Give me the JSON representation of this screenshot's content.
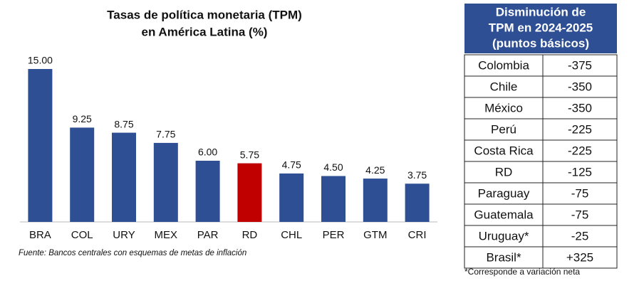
{
  "chart_data": {
    "type": "bar",
    "title_lines": [
      "Tasas de política monetaria (TPM)",
      "en América Latina (%)"
    ],
    "categories": [
      "BRA",
      "COL",
      "URY",
      "MEX",
      "PAR",
      "RD",
      "CHL",
      "PER",
      "GTM",
      "CRI"
    ],
    "values": [
      15,
      9.25,
      8.75,
      7.75,
      6,
      5.75,
      4.75,
      4.5,
      4.25,
      3.75
    ],
    "value_labels": [
      "15.00",
      "9.25",
      "8.75",
      "7.75",
      "6.00",
      "5.75",
      "4.75",
      "4.50",
      "4.25",
      "3.75"
    ],
    "colors": [
      "#2e4f94",
      "#2e4f94",
      "#2e4f94",
      "#2e4f94",
      "#2e4f94",
      "#c00000",
      "#2e4f94",
      "#2e4f94",
      "#2e4f94",
      "#2e4f94"
    ],
    "ylim": [
      0,
      15
    ],
    "source": "Fuente: Bancos centrales con esquemas de metas de inflación"
  },
  "table": {
    "header": [
      "Disminución de",
      "TPM en 2024-2025",
      "(puntos básicos)"
    ],
    "rows": [
      [
        "Colombia",
        "-375"
      ],
      [
        "Chile",
        "-350"
      ],
      [
        "México",
        "-350"
      ],
      [
        "Perú",
        "-225"
      ],
      [
        "Costa Rica",
        "-225"
      ],
      [
        "RD",
        "-125"
      ],
      [
        "Paraguay",
        "-75"
      ],
      [
        "Guatemala",
        "-75"
      ],
      [
        "Uruguay*",
        "-25"
      ],
      [
        "Brasil*",
        "+325"
      ]
    ],
    "footnote": "*Corresponde a variación neta"
  }
}
